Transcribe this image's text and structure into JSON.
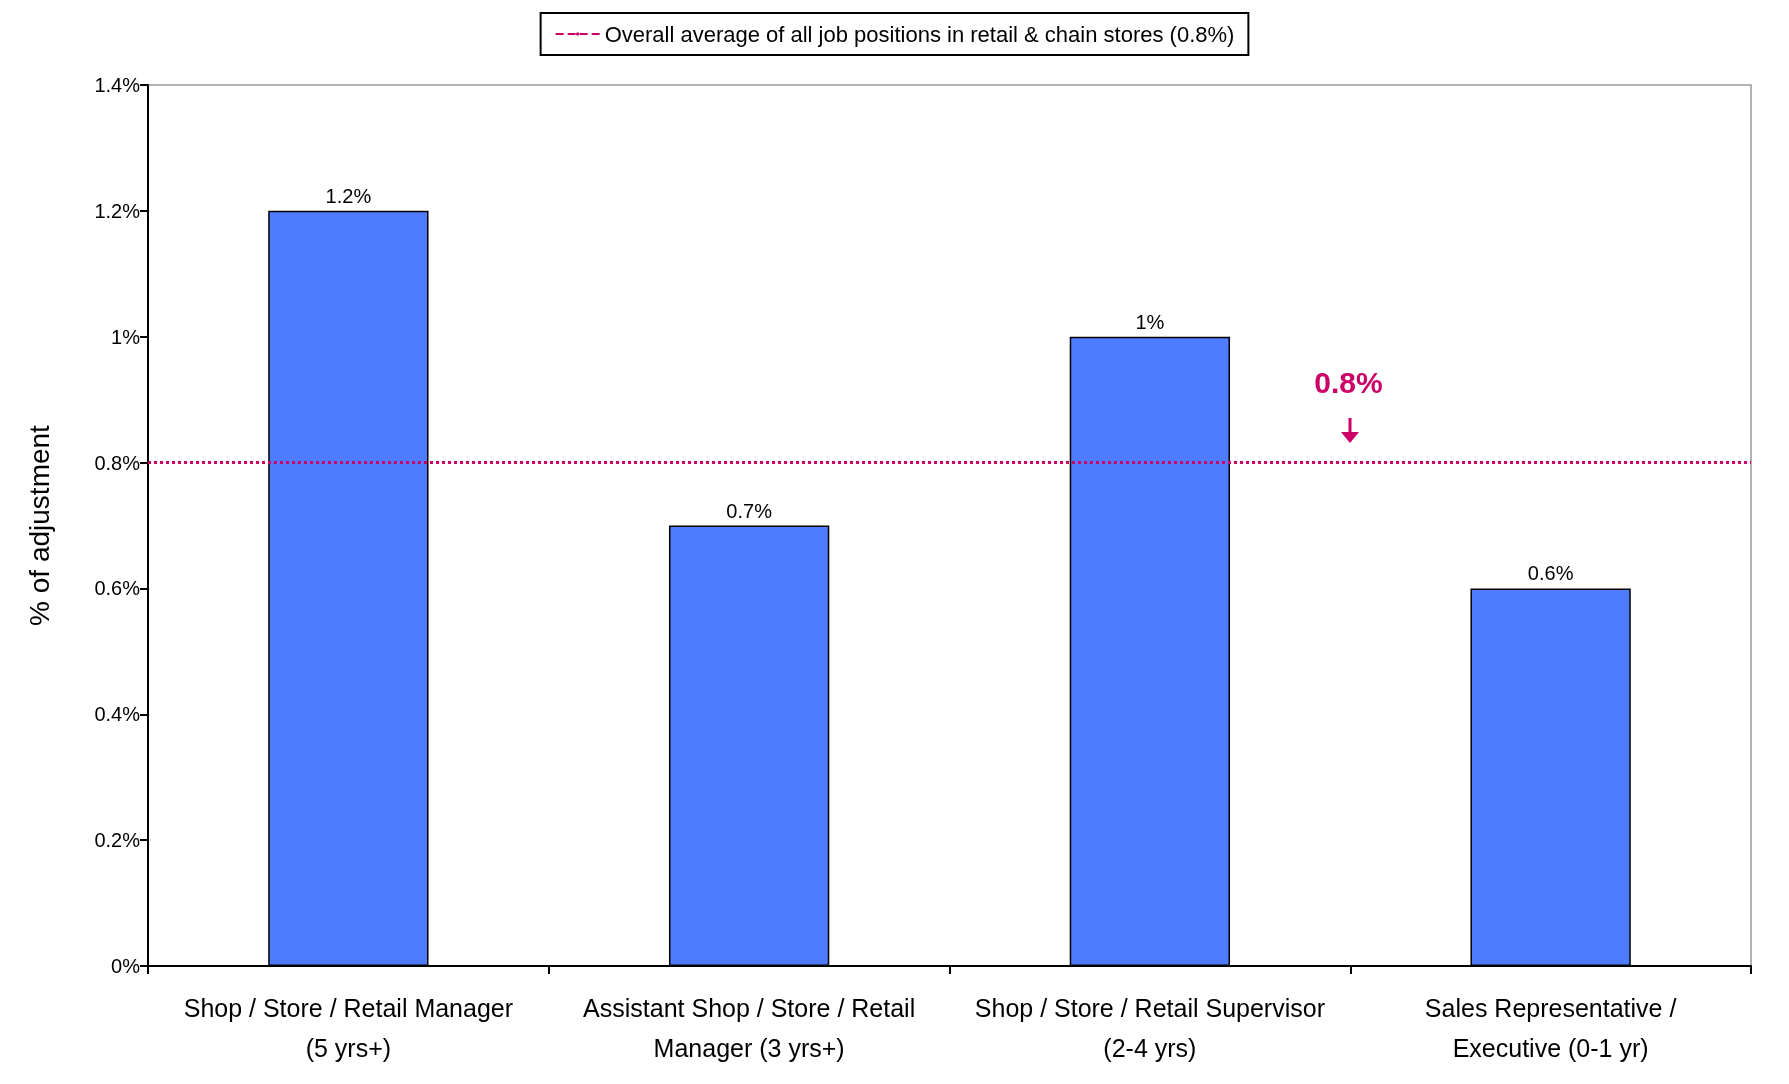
{
  "chart_data": {
    "type": "bar",
    "ylabel": "% of adjustment",
    "categories": [
      "Shop / Store / Retail Manager\n(5 yrs+)",
      "Assistant Shop / Store / Retail\nManager (3 yrs+)",
      "Shop / Store / Retail Supervisor\n(2-4 yrs)",
      "Sales Representative /\nExecutive (0-1 yr)"
    ],
    "values": [
      1.2,
      0.7,
      1,
      0.6
    ],
    "color": "#4f7bff",
    "value_labels": [
      "1.2%",
      "0.7%",
      "1%",
      "0.6%"
    ],
    "ylim": [
      0,
      1.4
    ],
    "yticks": [
      {
        "value": 0,
        "label": "0%"
      },
      {
        "value": 0.2,
        "label": "0.2%"
      },
      {
        "value": 0.4,
        "label": "0.4%"
      },
      {
        "value": 0.6,
        "label": "0.6%"
      },
      {
        "value": 0.8,
        "label": "0.8%"
      },
      {
        "value": 1,
        "label": "1%"
      },
      {
        "value": 1.2,
        "label": "1.2%"
      },
      {
        "value": 1.4,
        "label": "1.4%"
      }
    ],
    "ref_lines": [
      {
        "axis": "y",
        "value": 0.8,
        "label": "Overall average of all job positions in retail & chain stores (0.8%)",
        "color": "#cc0066",
        "line_style": "dotted"
      }
    ],
    "annotations": [
      {
        "text": "0.8%",
        "y": 0.8
      }
    ],
    "legend": "top",
    "grid": false
  }
}
